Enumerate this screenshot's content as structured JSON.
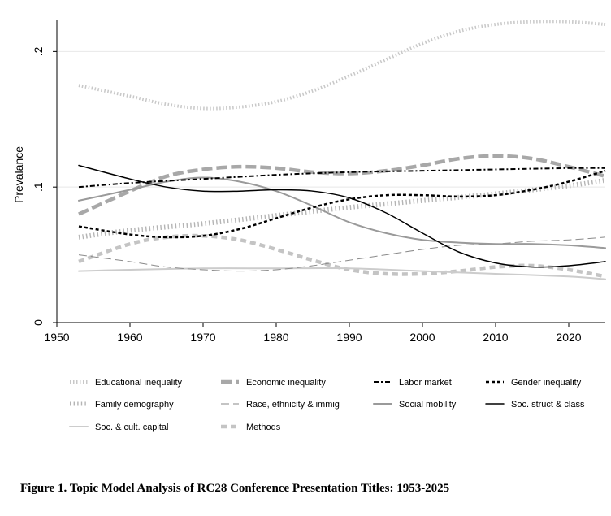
{
  "caption": "Figure 1. Topic Model Analysis of RC28 Conference Presentation Titles: 1953-2025",
  "chart_data": {
    "type": "line",
    "title": "",
    "xlabel": "",
    "ylabel": "Prevalance",
    "xlim": [
      1950,
      2025
    ],
    "ylim": [
      0,
      0.22
    ],
    "x_ticks": [
      1950,
      1960,
      1970,
      1980,
      1990,
      2000,
      2010,
      2020
    ],
    "x_tick_labels": [
      "1950",
      "1960",
      "1970",
      "1980",
      "1990",
      "2000",
      "2010",
      "2020"
    ],
    "y_ticks": [
      0,
      0.1,
      0.2
    ],
    "y_tick_labels": [
      "0",
      ".1",
      ".2"
    ],
    "grid": "horizontal",
    "legend_position": "bottom",
    "series": [
      {
        "name": "Educational inequality",
        "style": "educ",
        "x": [
          1953,
          1960,
          1965,
          1970,
          1975,
          1980,
          1985,
          1990,
          1995,
          2000,
          2005,
          2010,
          2015,
          2020,
          2025
        ],
        "values": [
          0.175,
          0.167,
          0.161,
          0.158,
          0.159,
          0.163,
          0.171,
          0.182,
          0.194,
          0.206,
          0.215,
          0.22,
          0.222,
          0.222,
          0.22
        ]
      },
      {
        "name": "Economic inequality",
        "style": "econ",
        "x": [
          1953,
          1960,
          1965,
          1970,
          1975,
          1980,
          1985,
          1990,
          1995,
          2000,
          2005,
          2010,
          2015,
          2020,
          2025
        ],
        "values": [
          0.08,
          0.097,
          0.108,
          0.113,
          0.115,
          0.114,
          0.111,
          0.11,
          0.112,
          0.116,
          0.121,
          0.123,
          0.121,
          0.115,
          0.108
        ]
      },
      {
        "name": "Labor market",
        "style": "labor",
        "x": [
          1953,
          1960,
          1970,
          1980,
          1990,
          2000,
          2010,
          2020,
          2025
        ],
        "values": [
          0.1,
          0.103,
          0.106,
          0.109,
          0.111,
          0.112,
          0.113,
          0.114,
          0.114
        ]
      },
      {
        "name": "Gender inequality",
        "style": "gender",
        "x": [
          1953,
          1960,
          1965,
          1970,
          1975,
          1980,
          1985,
          1990,
          1995,
          2000,
          2005,
          2010,
          2015,
          2020,
          2025
        ],
        "values": [
          0.071,
          0.065,
          0.063,
          0.064,
          0.069,
          0.077,
          0.085,
          0.091,
          0.094,
          0.094,
          0.093,
          0.094,
          0.098,
          0.104,
          0.112
        ]
      },
      {
        "name": "Family demography",
        "style": "family",
        "x": [
          1953,
          1960,
          1970,
          1980,
          1990,
          2000,
          2010,
          2020,
          2025
        ],
        "values": [
          0.063,
          0.068,
          0.073,
          0.079,
          0.085,
          0.09,
          0.095,
          0.101,
          0.105
        ]
      },
      {
        "name": "Race, ethnicity & immig",
        "style": "race",
        "x": [
          1953,
          1960,
          1965,
          1970,
          1975,
          1980,
          1985,
          1990,
          1995,
          2000,
          2005,
          2010,
          2015,
          2020,
          2025
        ],
        "values": [
          0.05,
          0.045,
          0.041,
          0.039,
          0.038,
          0.039,
          0.042,
          0.046,
          0.05,
          0.054,
          0.057,
          0.058,
          0.06,
          0.061,
          0.063
        ]
      },
      {
        "name": "Social mobility",
        "style": "mobility",
        "x": [
          1953,
          1960,
          1965,
          1970,
          1975,
          1980,
          1985,
          1990,
          1995,
          2000,
          2005,
          2010,
          2015,
          2020,
          2025
        ],
        "values": [
          0.09,
          0.098,
          0.104,
          0.107,
          0.104,
          0.097,
          0.086,
          0.074,
          0.066,
          0.061,
          0.059,
          0.058,
          0.058,
          0.057,
          0.055
        ]
      },
      {
        "name": "Soc. struct & class",
        "style": "class",
        "x": [
          1953,
          1960,
          1965,
          1970,
          1975,
          1980,
          1985,
          1990,
          1995,
          2000,
          2005,
          2010,
          2015,
          2020,
          2025
        ],
        "values": [
          0.116,
          0.106,
          0.1,
          0.097,
          0.097,
          0.098,
          0.097,
          0.092,
          0.081,
          0.066,
          0.052,
          0.044,
          0.041,
          0.042,
          0.045
        ]
      },
      {
        "name": "Soc. & cult. capital",
        "style": "capital",
        "x": [
          1953,
          1960,
          1970,
          1980,
          1990,
          2000,
          2010,
          2020,
          2025
        ],
        "values": [
          0.038,
          0.039,
          0.04,
          0.04,
          0.04,
          0.038,
          0.036,
          0.034,
          0.032
        ]
      },
      {
        "name": "Methods",
        "style": "methods",
        "x": [
          1953,
          1960,
          1965,
          1970,
          1975,
          1980,
          1985,
          1990,
          1995,
          2000,
          2005,
          2010,
          2015,
          2020,
          2025
        ],
        "values": [
          0.045,
          0.058,
          0.063,
          0.064,
          0.061,
          0.054,
          0.046,
          0.039,
          0.036,
          0.036,
          0.038,
          0.041,
          0.042,
          0.039,
          0.034
        ]
      }
    ]
  }
}
